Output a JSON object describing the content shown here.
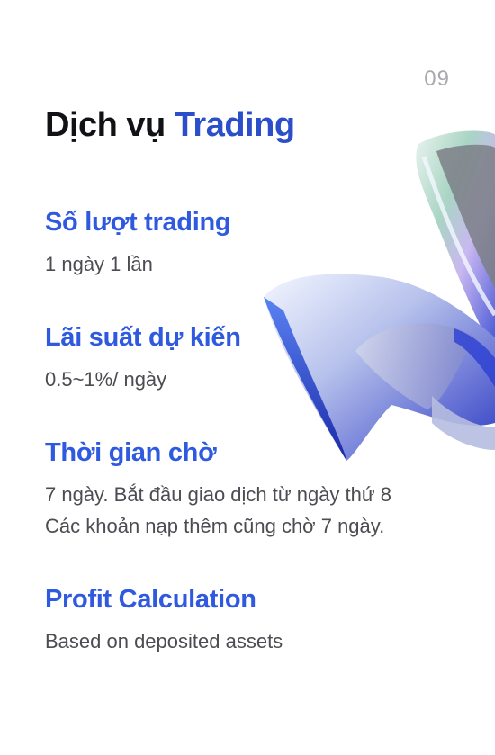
{
  "page_number": "09",
  "title": {
    "prefix": "Dịch vụ ",
    "accent": "Trading"
  },
  "sections": [
    {
      "heading": "Số lượt trading",
      "lines": [
        "1 ngày 1 lần"
      ]
    },
    {
      "heading": "Lãi suất dự kiến",
      "lines": [
        "0.5~1%/ ngày"
      ]
    },
    {
      "heading": "Thời gian chờ",
      "lines": [
        "7 ngày. Bắt đầu giao dịch từ ngày thứ 8",
        "Các khoản nạp thêm cũng chờ 7 ngày."
      ]
    },
    {
      "heading": "Profit Calculation",
      "lines": [
        "Based on deposited assets"
      ]
    }
  ],
  "colors": {
    "accent": "#2f5ae0",
    "title": "#111116",
    "body": "#4c4c52"
  }
}
